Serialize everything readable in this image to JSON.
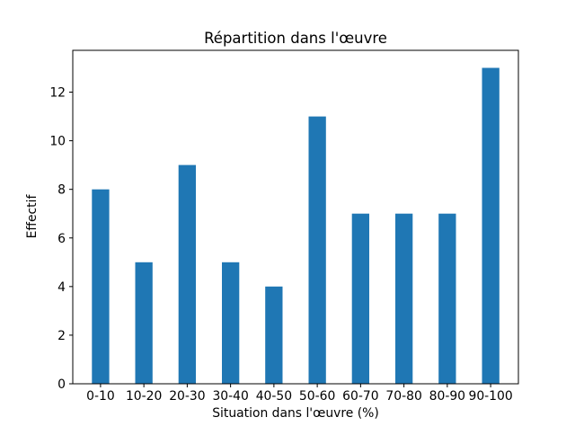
{
  "chart_data": {
    "type": "bar",
    "title": "Répartition dans l'œuvre",
    "xlabel": "Situation dans l'œuvre (%)",
    "ylabel": "Effectif",
    "categories": [
      "0-10",
      "10-20",
      "20-30",
      "30-40",
      "40-50",
      "50-60",
      "60-70",
      "70-80",
      "80-90",
      "90-100"
    ],
    "values": [
      8,
      5,
      9,
      5,
      4,
      11,
      7,
      7,
      7,
      13
    ],
    "yticks": [
      0,
      2,
      4,
      6,
      8,
      10,
      12
    ],
    "ylim": [
      0,
      13.72
    ],
    "grid": false,
    "legend": null,
    "bar_color": "#1f77b4",
    "axis_color": "#000000",
    "background_color": "#ffffff",
    "bar_width_fraction": 0.4
  }
}
